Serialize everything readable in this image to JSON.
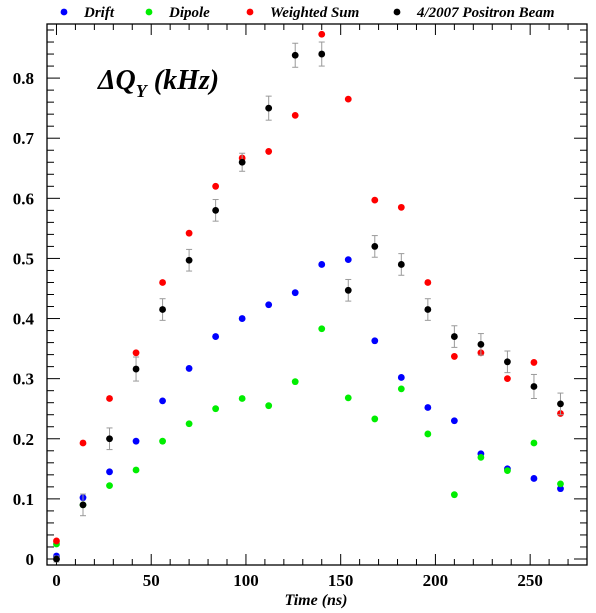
{
  "chart_data": {
    "type": "scatter",
    "title": "",
    "xlabel": "Time (ns)",
    "ylabel": "",
    "xlim": [
      -5,
      280
    ],
    "ylim": [
      -0.01,
      0.89
    ],
    "xticks": [
      0,
      50,
      100,
      150,
      200,
      250
    ],
    "yticks": [
      0,
      0.1,
      0.2,
      0.3,
      0.4,
      0.5,
      0.6,
      0.7,
      0.8
    ],
    "xtick_labels": [
      "0",
      "50",
      "100",
      "150",
      "200",
      "250"
    ],
    "ytick_labels": [
      "0",
      "0.1",
      "0.2",
      "0.3",
      "0.4",
      "0.5",
      "0.6",
      "0.7",
      "0.8"
    ],
    "grid": false,
    "legend_position": "top",
    "annotation": {
      "prefix": "ΔQ",
      "subscript": "Y",
      "suffix": " (kHz)"
    },
    "series": [
      {
        "name": "Drift",
        "color": "#0000ff",
        "x": [
          0,
          14,
          28,
          42,
          56,
          70,
          84,
          98,
          112,
          126,
          140,
          154,
          168,
          182,
          196,
          210,
          224,
          238,
          252,
          266
        ],
        "y": [
          0.005,
          0.102,
          0.145,
          0.196,
          0.263,
          0.317,
          0.37,
          0.4,
          0.423,
          0.443,
          0.49,
          0.498,
          0.363,
          0.302,
          0.252,
          0.23,
          0.175,
          0.15,
          0.134,
          0.117
        ]
      },
      {
        "name": "Dipole",
        "color": "#00ee00",
        "x": [
          0,
          14,
          28,
          42,
          56,
          70,
          84,
          98,
          112,
          126,
          140,
          154,
          168,
          182,
          196,
          210,
          224,
          238,
          252,
          266
        ],
        "y": [
          0.025,
          0.09,
          0.122,
          0.148,
          0.196,
          0.225,
          0.25,
          0.267,
          0.255,
          0.295,
          0.383,
          0.268,
          0.233,
          0.283,
          0.208,
          0.107,
          0.169,
          0.147,
          0.193,
          0.125
        ]
      },
      {
        "name": "Weighted Sum",
        "color": "#ff0000",
        "x": [
          0,
          14,
          28,
          42,
          56,
          70,
          84,
          98,
          112,
          126,
          140,
          154,
          168,
          182,
          196,
          210,
          224,
          238,
          252,
          266
        ],
        "y": [
          0.03,
          0.193,
          0.267,
          0.343,
          0.46,
          0.542,
          0.62,
          0.667,
          0.678,
          0.738,
          0.873,
          0.765,
          0.597,
          0.585,
          0.46,
          0.337,
          0.343,
          0.3,
          0.327,
          0.242
        ]
      },
      {
        "name": "4/2007 Positron Beam",
        "color": "#000000",
        "x": [
          0,
          14,
          28,
          42,
          56,
          70,
          84,
          98,
          112,
          126,
          140,
          154,
          168,
          182,
          196,
          210,
          224,
          238,
          252,
          266
        ],
        "y": [
          0.0,
          0.09,
          0.2,
          0.316,
          0.415,
          0.497,
          0.58,
          0.66,
          0.75,
          0.838,
          0.84,
          0.447,
          0.52,
          0.49,
          0.415,
          0.37,
          0.357,
          0.328,
          0.287,
          0.258
        ],
        "yerr": [
          0.005,
          0.018,
          0.018,
          0.02,
          0.018,
          0.018,
          0.018,
          0.015,
          0.02,
          0.02,
          0.02,
          0.018,
          0.018,
          0.018,
          0.018,
          0.018,
          0.018,
          0.018,
          0.02,
          0.018
        ]
      }
    ]
  }
}
